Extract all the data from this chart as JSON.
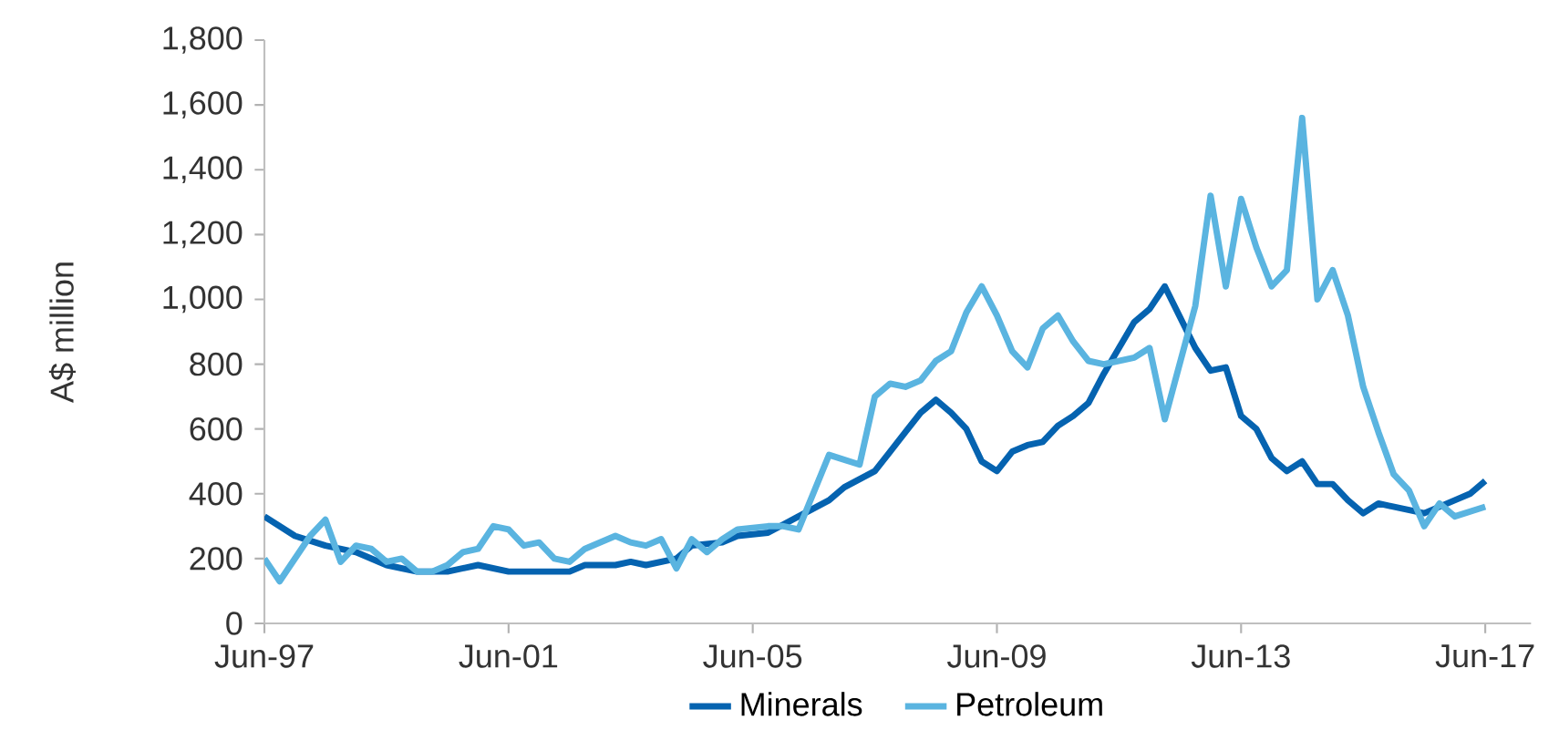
{
  "chart_data": {
    "type": "line",
    "ylabel": "A$ million",
    "series": [
      {
        "name": "Minerals",
        "color": "#0563b0",
        "x": [
          "1997-06",
          "1997-12",
          "1998-06",
          "1998-12",
          "1999-06",
          "1999-12",
          "2000-06",
          "2000-12",
          "2001-06",
          "2001-12",
          "2002-06",
          "2002-09",
          "2003-03",
          "2003-06",
          "2003-09",
          "2004-03",
          "2004-06",
          "2004-12",
          "2005-03",
          "2005-09",
          "2006-03",
          "2006-09",
          "2006-12",
          "2007-06",
          "2007-09",
          "2007-12",
          "2008-03",
          "2008-06",
          "2008-09",
          "2008-12",
          "2009-03",
          "2009-06",
          "2009-09",
          "2009-12",
          "2010-03",
          "2010-06",
          "2010-09",
          "2010-12",
          "2011-03",
          "2011-06",
          "2011-09",
          "2011-12",
          "2012-03",
          "2012-09",
          "2012-12",
          "2013-03",
          "2013-06",
          "2013-09",
          "2013-12",
          "2014-03",
          "2014-06",
          "2014-09",
          "2014-12",
          "2015-03",
          "2015-06",
          "2015-09",
          "2016-03",
          "2016-06",
          "2016-12",
          "2017-03",
          "2017-06"
        ],
        "values": [
          330,
          270,
          240,
          220,
          180,
          160,
          160,
          180,
          160,
          160,
          160,
          180,
          180,
          190,
          180,
          200,
          240,
          250,
          270,
          280,
          330,
          380,
          420,
          470,
          530,
          590,
          650,
          690,
          650,
          600,
          500,
          470,
          530,
          550,
          560,
          610,
          640,
          680,
          770,
          850,
          930,
          970,
          1040,
          850,
          780,
          790,
          640,
          600,
          510,
          470,
          500,
          430,
          430,
          380,
          340,
          370,
          350,
          340,
          380,
          400,
          440
        ]
      },
      {
        "name": "Petroleum",
        "color": "#5ab4e0",
        "x": [
          "1997-06",
          "1997-09",
          "1998-03",
          "1998-06",
          "1998-09",
          "1998-12",
          "1999-03",
          "1999-06",
          "1999-09",
          "1999-12",
          "2000-03",
          "2000-06",
          "2000-09",
          "2000-12",
          "2001-03",
          "2001-06",
          "2001-09",
          "2001-12",
          "2002-03",
          "2002-06",
          "2002-09",
          "2003-03",
          "2003-06",
          "2003-09",
          "2003-12",
          "2004-03",
          "2004-06",
          "2004-09",
          "2004-12",
          "2005-03",
          "2005-09",
          "2005-12",
          "2006-03",
          "2006-09",
          "2007-03",
          "2007-06",
          "2007-09",
          "2007-12",
          "2008-03",
          "2008-06",
          "2008-09",
          "2008-12",
          "2009-03",
          "2009-06",
          "2009-09",
          "2009-12",
          "2010-03",
          "2010-06",
          "2010-09",
          "2010-12",
          "2011-03",
          "2011-09",
          "2011-12",
          "2012-03",
          "2012-09",
          "2012-12",
          "2013-03",
          "2013-06",
          "2013-09",
          "2013-12",
          "2014-03",
          "2014-06",
          "2014-09",
          "2014-12",
          "2015-03",
          "2015-06",
          "2015-09",
          "2015-12",
          "2016-03",
          "2016-06",
          "2016-09",
          "2016-12",
          "2017-06"
        ],
        "values": [
          200,
          130,
          270,
          320,
          190,
          240,
          230,
          190,
          200,
          160,
          160,
          180,
          220,
          230,
          300,
          290,
          240,
          250,
          200,
          190,
          230,
          270,
          250,
          240,
          260,
          170,
          260,
          220,
          260,
          290,
          300,
          300,
          290,
          520,
          490,
          700,
          740,
          730,
          750,
          810,
          840,
          960,
          1040,
          950,
          840,
          790,
          910,
          950,
          870,
          810,
          800,
          820,
          850,
          630,
          980,
          1320,
          1040,
          1310,
          1160,
          1040,
          1090,
          1560,
          1000,
          1090,
          950,
          730,
          590,
          460,
          410,
          300,
          370,
          330,
          360
        ]
      }
    ],
    "xlim": [
      "1997-06",
      "2018-03"
    ],
    "xticks": [
      {
        "value": "1997-06",
        "label": "Jun-97"
      },
      {
        "value": "2001-06",
        "label": "Jun-01"
      },
      {
        "value": "2005-06",
        "label": "Jun-05"
      },
      {
        "value": "2009-06",
        "label": "Jun-09"
      },
      {
        "value": "2013-06",
        "label": "Jun-13"
      },
      {
        "value": "2017-06",
        "label": "Jun-17"
      }
    ],
    "ylim": [
      0,
      1800
    ],
    "yticks": [
      0,
      200,
      400,
      600,
      800,
      {
        "value": 1000,
        "label": "1,000"
      },
      {
        "value": 1200,
        "label": "1,200"
      },
      {
        "value": 1400,
        "label": "1,400"
      },
      {
        "value": 1600,
        "label": "1,600"
      },
      {
        "value": 1800,
        "label": "1,800"
      }
    ],
    "legend": "bottom"
  }
}
